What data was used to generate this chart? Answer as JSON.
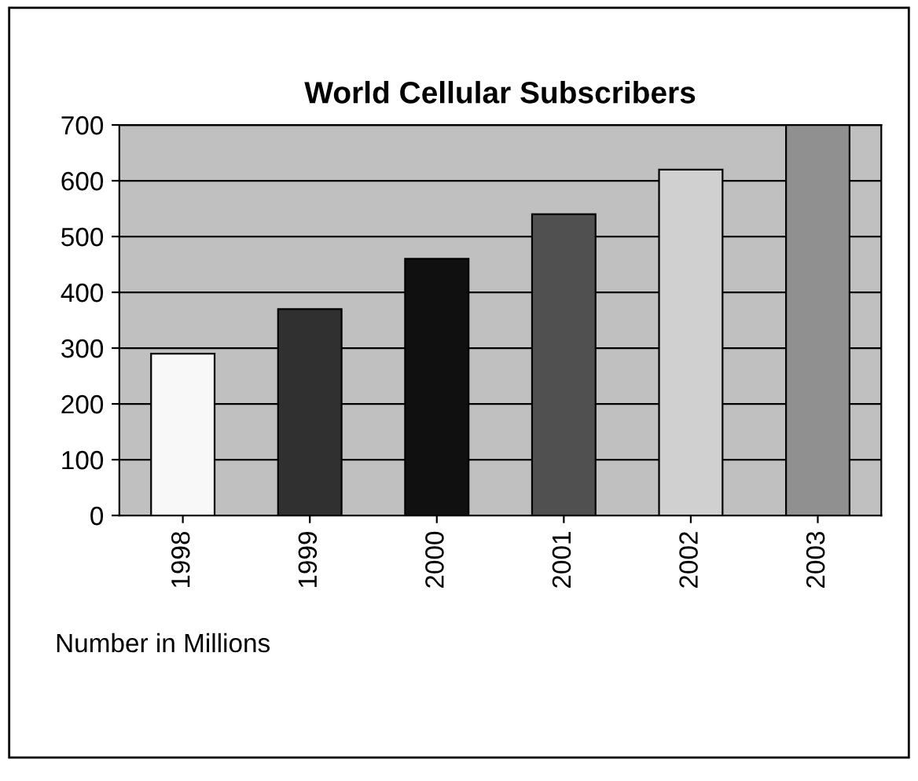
{
  "chart_data": {
    "type": "bar",
    "title": "World Cellular Subscribers",
    "categories": [
      "1998",
      "1999",
      "2000",
      "2001",
      "2002",
      "2003"
    ],
    "values": [
      290,
      370,
      460,
      540,
      620,
      700
    ],
    "colors": [
      "#f8f8f8",
      "#303030",
      "#101010",
      "#505050",
      "#d0d0d0",
      "#909090"
    ],
    "ylim": [
      0,
      700
    ],
    "yticks": [
      0,
      100,
      200,
      300,
      400,
      500,
      600,
      700
    ],
    "grid": "y",
    "annotations": [
      "Number in Millions"
    ]
  }
}
